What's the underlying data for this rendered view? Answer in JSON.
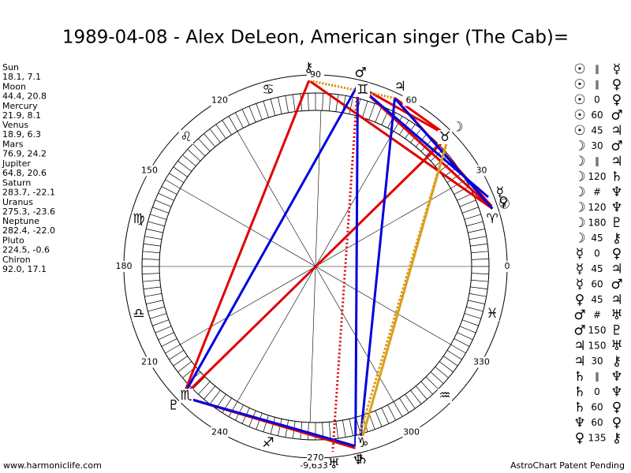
{
  "header": {
    "title": "1989-04-08 - Alex DeLeon, American singer (The Cab)="
  },
  "planets": [
    {
      "name": "Sun",
      "position": "18.1, 7.1",
      "glyph": "☉"
    },
    {
      "name": "Moon",
      "position": "44.4, 20.8",
      "glyph": "☽"
    },
    {
      "name": "Mercury",
      "position": "21.9, 8.1",
      "glyph": "☿"
    },
    {
      "name": "Venus",
      "position": "18.9, 6.3",
      "glyph": "♀"
    },
    {
      "name": "Mars",
      "position": "76.9, 24.2",
      "glyph": "♂"
    },
    {
      "name": "Jupiter",
      "position": "64.8, 20.6",
      "glyph": "♃"
    },
    {
      "name": "Saturn",
      "position": "283.7, -22.1",
      "glyph": "♄"
    },
    {
      "name": "Uranus",
      "position": "275.3, -23.6",
      "glyph": "♅"
    },
    {
      "name": "Neptune",
      "position": "282.4, -22.0",
      "glyph": "♆"
    },
    {
      "name": "Pluto",
      "position": "224.5, -0.6",
      "glyph": "♇"
    },
    {
      "name": "Chiron",
      "position": "92.0, 17.1",
      "glyph": "⚷"
    }
  ],
  "wheel": {
    "degrees": [
      0,
      30,
      60,
      90,
      120,
      150,
      180,
      210,
      240,
      270,
      300,
      330
    ],
    "signs": [
      "♈",
      "♉",
      "♊",
      "♋",
      "♌",
      "♍",
      "♎",
      "♏",
      "♐",
      "♑",
      "♒",
      "♓"
    ],
    "bottom_value": "-9,633"
  },
  "aspects": [
    [
      "☉",
      "∥",
      "☿"
    ],
    [
      "☉",
      "∥",
      "♀"
    ],
    [
      "☉",
      "0",
      "♀"
    ],
    [
      "☉",
      "60",
      "♂"
    ],
    [
      "☉",
      "45",
      "♃"
    ],
    [
      "☽",
      "30",
      "♂"
    ],
    [
      "☽",
      "∥",
      "♃"
    ],
    [
      "☽",
      "120",
      "♄"
    ],
    [
      "☽",
      "#",
      "♆"
    ],
    [
      "☽",
      "120",
      "♆"
    ],
    [
      "☽",
      "180",
      "♇"
    ],
    [
      "☽",
      "45",
      "⚷"
    ],
    [
      "☿",
      "0",
      "♀"
    ],
    [
      "☿",
      "45",
      "♃"
    ],
    [
      "☿",
      "60",
      "♂"
    ],
    [
      "♀",
      "45",
      "♃"
    ],
    [
      "♂",
      "#",
      "♅"
    ],
    [
      "♂",
      "150",
      "♇"
    ],
    [
      "♃",
      "150",
      "♅"
    ],
    [
      "♃",
      "30",
      "⚷"
    ],
    [
      "♄",
      "∥",
      "♆"
    ],
    [
      "♄",
      "0",
      "♆"
    ],
    [
      "♄",
      "60",
      "♀"
    ],
    [
      "♆",
      "60",
      "♀"
    ],
    [
      "♀",
      "135",
      "⚷"
    ]
  ],
  "footer": {
    "left": "www.harmoniclife.com",
    "right": "AstroChart Patent Pending"
  }
}
